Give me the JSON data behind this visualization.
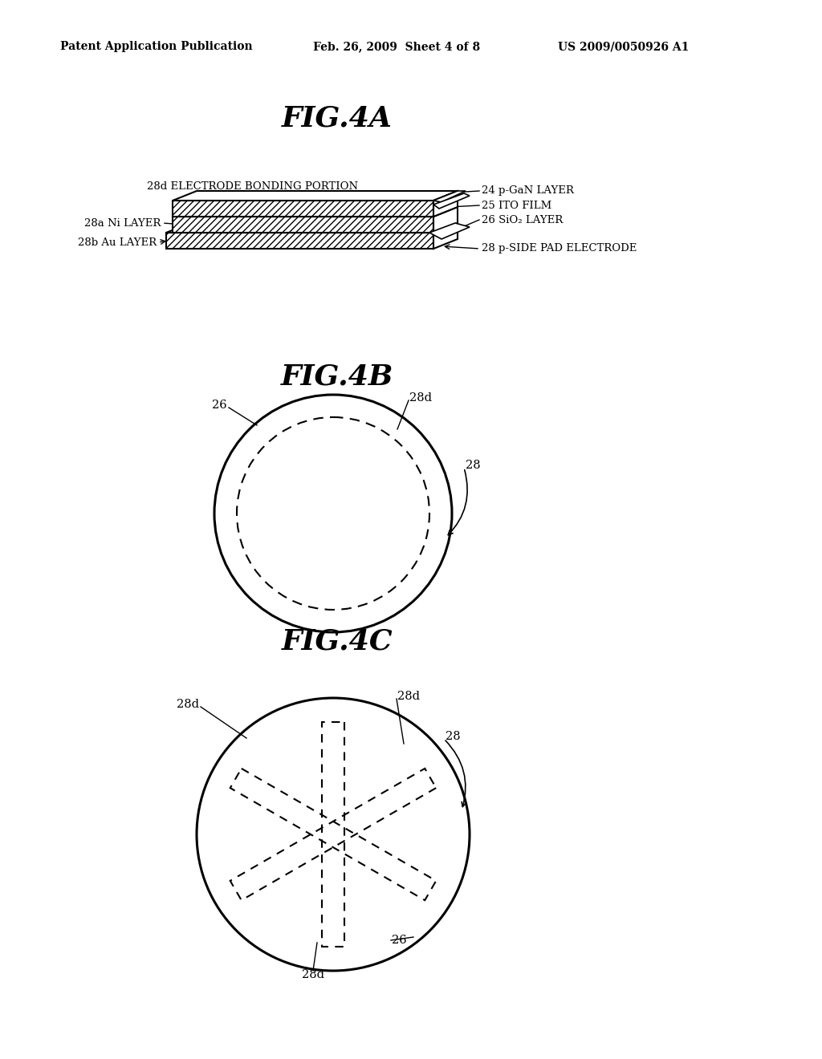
{
  "header_left": "Patent Application Publication",
  "header_mid": "Feb. 26, 2009  Sheet 4 of 8",
  "header_right": "US 2009/0050926 A1",
  "fig4a_title": "FIG.4A",
  "fig4b_title": "FIG.4B",
  "fig4c_title": "FIG.4C",
  "background": "#ffffff",
  "line_color": "#000000",
  "labels_4a": {
    "28d_electrode": "28d ELECTRODE BONDING PORTION",
    "24_pgan": "24 p-GaN LAYER",
    "25_ito": "25 ITO FILM",
    "26_sio2": "26 SiO₂ LAYER",
    "28a_ni": "28a Ni LAYER",
    "28b_au": "28b Au LAYER",
    "28_pside": "28 p-SIDE PAD ELECTRODE"
  }
}
